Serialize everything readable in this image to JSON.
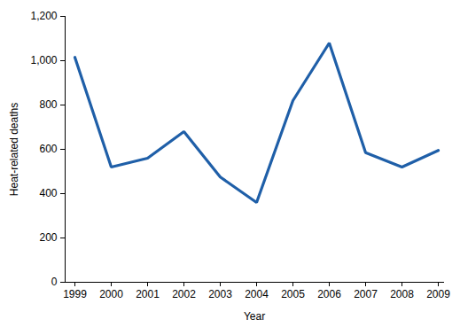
{
  "chart_data": {
    "type": "line",
    "x_label": "Year",
    "y_label": "Heat-related deaths",
    "x": [
      1999,
      2000,
      2001,
      2002,
      2003,
      2004,
      2005,
      2006,
      2007,
      2008,
      2009
    ],
    "values": [
      1015,
      520,
      560,
      680,
      475,
      360,
      820,
      1080,
      585,
      520,
      595
    ],
    "color": "#1f5fa8",
    "xlim": [
      1999,
      2009
    ],
    "xticks": [
      1999,
      2000,
      2001,
      2002,
      2003,
      2004,
      2005,
      2006,
      2007,
      2008,
      2009
    ],
    "ylim": [
      0,
      1200
    ],
    "yticks": [
      0,
      200,
      400,
      600,
      800,
      {
        "value": 1000,
        "label": "1,000"
      },
      {
        "value": 1200,
        "label": "1,200"
      }
    ],
    "grid": false
  }
}
